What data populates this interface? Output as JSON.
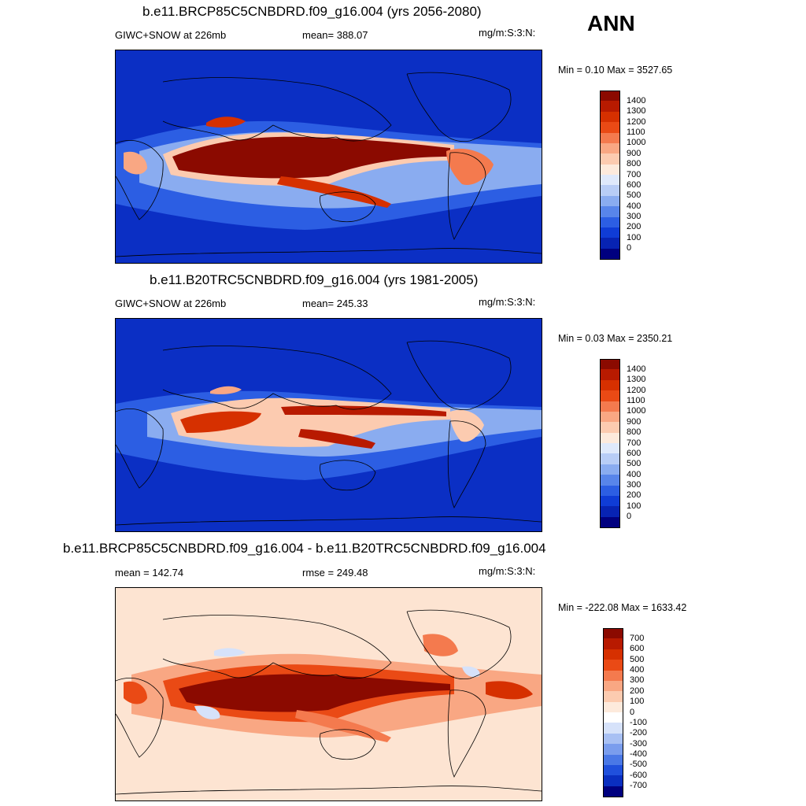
{
  "season": "ANN",
  "panels": [
    {
      "id": "future",
      "title": "b.e11.BRCP85C5CNBDRD.f09_g16.004 (yrs 2056-2080)",
      "left_label": "GIWC+SNOW at 226mb",
      "center_label": "mean= 388.07",
      "units": "mg/m:S:3:N:",
      "minmax": "Min =   0.10 Max = 3527.65",
      "background": "#0b2fc4"
    },
    {
      "id": "present",
      "title": "b.e11.B20TRC5CNBDRD.f09_g16.004 (yrs 1981-2005)",
      "left_label": "GIWC+SNOW at 226mb",
      "center_label": "mean= 245.33",
      "units": "mg/m:S:3:N:",
      "minmax": "Min =   0.03 Max = 2350.21",
      "background": "#0b2fc4"
    },
    {
      "id": "difference",
      "title": "b.e11.BRCP85C5CNBDRD.f09_g16.004 - b.e11.B20TRC5CNBDRD.f09_g16.004",
      "left_label": "mean = 142.74",
      "center_label": "rmse = 249.48",
      "units": "mg/m:S:3:N:",
      "minmax": "Min = -222.08 Max = 1633.42",
      "background": "#fde4d2"
    }
  ],
  "colorbars": {
    "absolute": {
      "labels": [
        "1400",
        "1300",
        "1200",
        "1100",
        "1000",
        "900",
        "800",
        "700",
        "600",
        "500",
        "400",
        "300",
        "200",
        "100",
        "0"
      ],
      "colors": [
        "#8b0a00",
        "#b81a00",
        "#d63000",
        "#ea4a15",
        "#f47a4e",
        "#f9a783",
        "#fccbb0",
        "#fdeadc",
        "#dfe9fb",
        "#b8cdf6",
        "#8aacf0",
        "#5885ea",
        "#2c5ee3",
        "#0f3cd6",
        "#0723b3",
        "#00007f"
      ]
    },
    "difference": {
      "labels": [
        "700",
        "600",
        "500",
        "400",
        "300",
        "200",
        "100",
        "0",
        "-100",
        "-200",
        "-300",
        "-400",
        "-500",
        "-600",
        "-700"
      ],
      "colors": [
        "#8b0a00",
        "#b81a00",
        "#d63000",
        "#ea4a15",
        "#f47a4e",
        "#f9a783",
        "#fccbb0",
        "#fdeadc",
        "#ffffff",
        "#d6e2fa",
        "#a8c0f3",
        "#7a9ded",
        "#4a78e6",
        "#2050dc",
        "#0a2fc0",
        "#00007f"
      ]
    }
  },
  "chart_data": [
    {
      "type": "heatmap",
      "title": "b.e11.BRCP85C5CNBDRD.f09_g16.004 (yrs 2056-2080)",
      "variable": "GIWC+SNOW at 226mb",
      "units": "mg/m:S:3:N:",
      "mean": 388.07,
      "min": 0.1,
      "max": 3527.65,
      "levels": [
        0,
        100,
        200,
        300,
        400,
        500,
        600,
        700,
        800,
        900,
        1000,
        1100,
        1200,
        1300,
        1400
      ]
    },
    {
      "type": "heatmap",
      "title": "b.e11.B20TRC5CNBDRD.f09_g16.004 (yrs 1981-2005)",
      "variable": "GIWC+SNOW at 226mb",
      "units": "mg/m:S:3:N:",
      "mean": 245.33,
      "min": 0.03,
      "max": 2350.21,
      "levels": [
        0,
        100,
        200,
        300,
        400,
        500,
        600,
        700,
        800,
        900,
        1000,
        1100,
        1200,
        1300,
        1400
      ]
    },
    {
      "type": "heatmap",
      "title": "b.e11.BRCP85C5CNBDRD.f09_g16.004 - b.e11.B20TRC5CNBDRD.f09_g16.004",
      "units": "mg/m:S:3:N:",
      "mean": 142.74,
      "rmse": 249.48,
      "min": -222.08,
      "max": 1633.42,
      "levels": [
        -700,
        -600,
        -500,
        -400,
        -300,
        -200,
        -100,
        0,
        100,
        200,
        300,
        400,
        500,
        600,
        700
      ]
    }
  ]
}
